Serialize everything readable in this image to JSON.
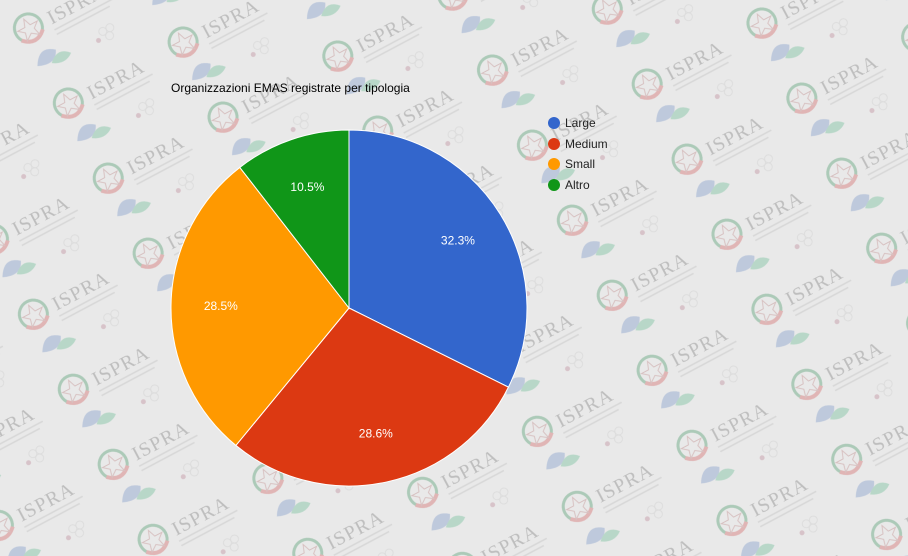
{
  "chart_data": {
    "type": "pie",
    "title": "Organizzazioni EMAS registrate per tipologia",
    "categories": [
      "Large",
      "Medium",
      "Small",
      "Altro"
    ],
    "values": [
      32.3,
      28.6,
      28.5,
      10.5
    ],
    "labels": [
      "32.3%",
      "28.6%",
      "28.5%",
      "10.5%"
    ],
    "colors": [
      "#3366cc",
      "#dc3912",
      "#ff9900",
      "#109618"
    ],
    "legend_position": "right",
    "start_angle_deg": 0,
    "direction": "clockwise"
  },
  "background": {
    "watermark_text": "ISPRA",
    "color": "#e9e9e9"
  }
}
